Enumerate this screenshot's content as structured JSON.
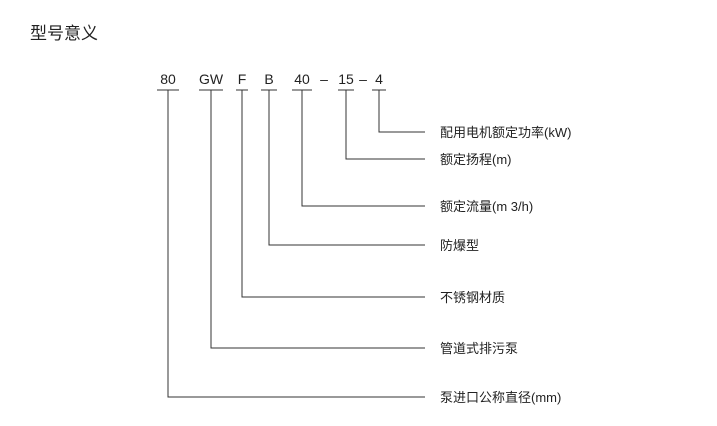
{
  "title": "型号意义",
  "codes": [
    "80",
    "GW",
    "F",
    "B",
    "40",
    "15",
    "4"
  ],
  "separators": [
    "–",
    "–"
  ],
  "labels": [
    "配用电机额定功率(kW)",
    "额定扬程(m)",
    "额定流量(m 3/h)",
    "防爆型",
    "不锈钢材质",
    "管道式排污泵",
    "泵进口公称直径(mm)"
  ]
}
